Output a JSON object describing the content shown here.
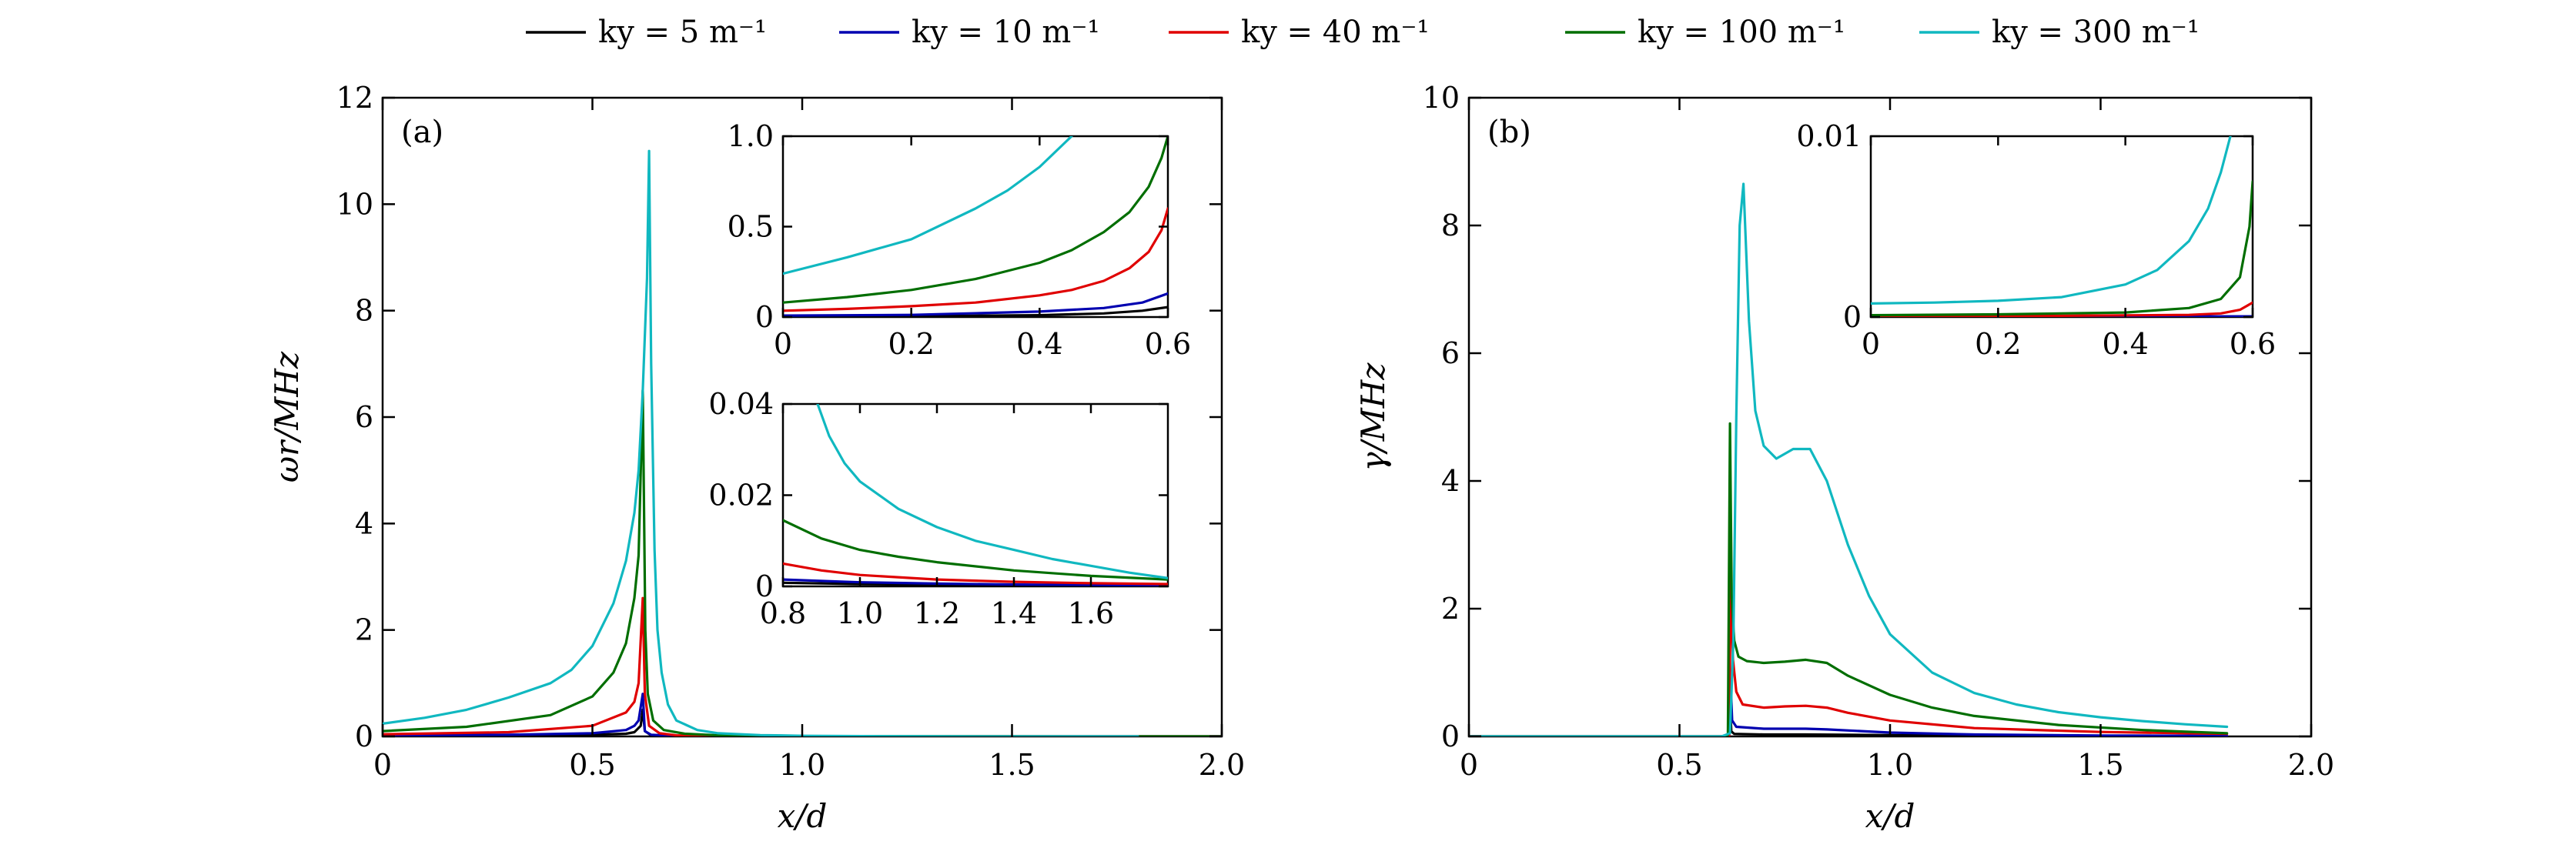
{
  "chart_data": [
    {
      "id": "a",
      "type": "line",
      "panel_label": "(a)",
      "xlabel": "x/d",
      "ylabel": "ωr/MHz",
      "xlim": [
        0,
        2.0
      ],
      "ylim": [
        0,
        12
      ],
      "xticks": [
        "0",
        "0.5",
        "1.0",
        "1.5",
        "2.0"
      ],
      "yticks": [
        "0",
        "2",
        "4",
        "6",
        "8",
        "10",
        "12"
      ],
      "legend": [
        "ky = 5 m⁻¹",
        "ky = 10 m⁻¹",
        "ky = 40 m⁻¹",
        "ky = 100 m⁻¹",
        "ky = 300 m⁻¹"
      ],
      "series": [
        {
          "name": "ky = 5 m⁻¹",
          "color": "#000000",
          "x": [
            0,
            0.3,
            0.5,
            0.58,
            0.6,
            0.615,
            0.62,
            0.625,
            0.64,
            0.7,
            1.0,
            1.5,
            2.0
          ],
          "y": [
            0.01,
            0.015,
            0.03,
            0.05,
            0.08,
            0.2,
            0.5,
            0.1,
            0.02,
            0.005,
            0.001,
            0.0,
            0.0
          ]
        },
        {
          "name": "ky = 10 m⁻¹",
          "color": "#0000b0",
          "x": [
            0,
            0.3,
            0.5,
            0.58,
            0.6,
            0.61,
            0.62,
            0.625,
            0.64,
            0.7,
            1.0,
            1.5,
            2.0
          ],
          "y": [
            0.02,
            0.03,
            0.06,
            0.12,
            0.2,
            0.3,
            0.8,
            0.1,
            0.03,
            0.008,
            0.001,
            0.0,
            0.0
          ]
        },
        {
          "name": "ky = 40 m⁻¹",
          "color": "#e00000",
          "x": [
            0,
            0.3,
            0.5,
            0.58,
            0.6,
            0.61,
            0.62,
            0.625,
            0.635,
            0.66,
            0.7,
            1.0,
            1.5,
            2.0
          ],
          "y": [
            0.04,
            0.08,
            0.2,
            0.45,
            0.65,
            1.0,
            2.6,
            0.8,
            0.2,
            0.06,
            0.02,
            0.005,
            0.001,
            0.0
          ]
        },
        {
          "name": "ky = 100 m⁻¹",
          "color": "#006e00",
          "x": [
            0,
            0.2,
            0.4,
            0.5,
            0.55,
            0.58,
            0.6,
            0.61,
            0.62,
            0.626,
            0.632,
            0.645,
            0.67,
            0.72,
            0.8,
            1.0,
            1.5,
            2.0
          ],
          "y": [
            0.1,
            0.18,
            0.4,
            0.75,
            1.2,
            1.75,
            2.6,
            3.4,
            6.5,
            2.0,
            0.8,
            0.3,
            0.12,
            0.05,
            0.02,
            0.006,
            0.001,
            0.0
          ]
        },
        {
          "name": "ky = 300 m⁻¹",
          "color": "#10b8c0",
          "x": [
            0,
            0.1,
            0.2,
            0.3,
            0.4,
            0.45,
            0.5,
            0.55,
            0.58,
            0.6,
            0.61,
            0.62,
            0.63,
            0.635,
            0.64,
            0.648,
            0.655,
            0.665,
            0.68,
            0.7,
            0.75,
            0.8,
            0.9,
            1.0,
            1.2,
            1.5,
            1.8
          ],
          "y": [
            0.24,
            0.35,
            0.5,
            0.73,
            1.0,
            1.25,
            1.7,
            2.5,
            3.3,
            4.2,
            5.0,
            6.5,
            8.6,
            11.0,
            7.0,
            3.5,
            2.0,
            1.2,
            0.6,
            0.3,
            0.12,
            0.06,
            0.025,
            0.012,
            0.005,
            0.0,
            0.0
          ]
        }
      ],
      "insets": [
        {
          "id": "a-inset-top",
          "xlim": [
            0,
            0.6
          ],
          "ylim": [
            0,
            1.0
          ],
          "xticks": [
            "0",
            "0.2",
            "0.4",
            "0.6"
          ],
          "yticks": [
            "0",
            "0.5",
            "1.0"
          ],
          "series": [
            {
              "name": "ky = 5 m⁻¹",
              "color": "#000000",
              "x": [
                0,
                0.2,
                0.4,
                0.5,
                0.56,
                0.6
              ],
              "y": [
                0.003,
                0.005,
                0.01,
                0.02,
                0.035,
                0.055
              ]
            },
            {
              "name": "ky = 10 m⁻¹",
              "color": "#0000b0",
              "x": [
                0,
                0.2,
                0.4,
                0.5,
                0.56,
                0.6
              ],
              "y": [
                0.008,
                0.012,
                0.03,
                0.05,
                0.08,
                0.13
              ]
            },
            {
              "name": "ky = 40 m⁻¹",
              "color": "#e00000",
              "x": [
                0,
                0.1,
                0.2,
                0.3,
                0.4,
                0.45,
                0.5,
                0.54,
                0.57,
                0.59,
                0.6
              ],
              "y": [
                0.035,
                0.045,
                0.06,
                0.08,
                0.12,
                0.15,
                0.2,
                0.27,
                0.36,
                0.48,
                0.6
              ]
            },
            {
              "name": "ky = 100 m⁻¹",
              "color": "#006e00",
              "x": [
                0,
                0.1,
                0.2,
                0.3,
                0.4,
                0.45,
                0.5,
                0.54,
                0.57,
                0.59,
                0.6
              ],
              "y": [
                0.08,
                0.11,
                0.15,
                0.21,
                0.3,
                0.37,
                0.47,
                0.58,
                0.72,
                0.88,
                1.0
              ]
            },
            {
              "name": "ky = 300 m⁻¹",
              "color": "#10b8c0",
              "x": [
                0,
                0.1,
                0.2,
                0.3,
                0.35,
                0.4,
                0.45
              ],
              "y": [
                0.24,
                0.33,
                0.43,
                0.6,
                0.7,
                0.83,
                1.0
              ]
            }
          ]
        },
        {
          "id": "a-inset-bottom",
          "xlim": [
            0.8,
            1.8
          ],
          "ylim": [
            0,
            0.04
          ],
          "xticks": [
            "0.8",
            "1.0",
            "1.2",
            "1.4",
            "1.6"
          ],
          "yticks": [
            "0",
            "0.02",
            "0.04"
          ],
          "series": [
            {
              "name": "ky = 5 m⁻¹",
              "color": "#000000",
              "x": [
                0.8,
                1.0,
                1.2,
                1.4,
                1.6,
                1.8
              ],
              "y": [
                0.0008,
                0.0005,
                0.0003,
                0.0002,
                0.0001,
                0.0001
              ]
            },
            {
              "name": "ky = 10 m⁻¹",
              "color": "#0000b0",
              "x": [
                0.8,
                1.0,
                1.2,
                1.4,
                1.6,
                1.8
              ],
              "y": [
                0.0015,
                0.0009,
                0.0006,
                0.0004,
                0.0003,
                0.0002
              ]
            },
            {
              "name": "ky = 40 m⁻¹",
              "color": "#e00000",
              "x": [
                0.8,
                0.9,
                1.0,
                1.2,
                1.4,
                1.6,
                1.8
              ],
              "y": [
                0.005,
                0.0035,
                0.0025,
                0.0015,
                0.001,
                0.0007,
                0.0005
              ]
            },
            {
              "name": "ky = 100 m⁻¹",
              "color": "#006e00",
              "x": [
                0.8,
                0.9,
                1.0,
                1.1,
                1.2,
                1.4,
                1.6,
                1.8
              ],
              "y": [
                0.0145,
                0.0105,
                0.008,
                0.0065,
                0.0053,
                0.0035,
                0.0023,
                0.0015
              ]
            },
            {
              "name": "ky = 300 m⁻¹",
              "color": "#10b8c0",
              "x": [
                0.89,
                0.92,
                0.96,
                1.0,
                1.1,
                1.2,
                1.3,
                1.4,
                1.5,
                1.6,
                1.7,
                1.8
              ],
              "y": [
                0.04,
                0.033,
                0.027,
                0.023,
                0.017,
                0.013,
                0.01,
                0.008,
                0.006,
                0.0045,
                0.003,
                0.0018
              ]
            }
          ]
        }
      ]
    },
    {
      "id": "b",
      "type": "line",
      "panel_label": "(b)",
      "xlabel": "x/d",
      "ylabel": "γ/MHz",
      "xlim": [
        0,
        2.0
      ],
      "ylim": [
        0,
        10
      ],
      "xticks": [
        "0",
        "0.5",
        "1.0",
        "1.5",
        "2.0"
      ],
      "yticks": [
        "0",
        "2",
        "4",
        "6",
        "8",
        "10"
      ],
      "series": [
        {
          "name": "ky = 5 m⁻¹",
          "color": "#000000",
          "x": [
            0,
            0.6,
            0.618,
            0.62,
            0.623,
            0.63,
            0.7,
            0.8,
            1.0,
            1.2,
            1.5,
            1.8
          ],
          "y": [
            0,
            0,
            0,
            0.5,
            0.08,
            0.04,
            0.03,
            0.03,
            0.02,
            0.01,
            0.005,
            0.003
          ]
        },
        {
          "name": "ky = 10 m⁻¹",
          "color": "#0000b0",
          "x": [
            0,
            0.6,
            0.618,
            0.621,
            0.625,
            0.635,
            0.7,
            0.8,
            0.85,
            1.0,
            1.2,
            1.5,
            1.8
          ],
          "y": [
            0,
            0,
            0,
            0.9,
            0.25,
            0.15,
            0.12,
            0.12,
            0.11,
            0.06,
            0.03,
            0.015,
            0.008
          ]
        },
        {
          "name": "ky = 40 m⁻¹",
          "color": "#e00000",
          "x": [
            0,
            0.6,
            0.618,
            0.622,
            0.627,
            0.635,
            0.65,
            0.7,
            0.75,
            0.8,
            0.85,
            0.9,
            1.0,
            1.2,
            1.5,
            1.8
          ],
          "y": [
            0,
            0,
            0,
            2.6,
            1.2,
            0.7,
            0.5,
            0.45,
            0.47,
            0.48,
            0.45,
            0.37,
            0.25,
            0.13,
            0.07,
            0.04
          ]
        },
        {
          "name": "ky = 100 m⁻¹",
          "color": "#006e00",
          "x": [
            0,
            0.6,
            0.615,
            0.62,
            0.624,
            0.63,
            0.64,
            0.66,
            0.7,
            0.75,
            0.8,
            0.85,
            0.9,
            1.0,
            1.1,
            1.2,
            1.4,
            1.6,
            1.8
          ],
          "y": [
            0,
            0,
            0.02,
            4.9,
            2.2,
            1.5,
            1.25,
            1.18,
            1.15,
            1.17,
            1.2,
            1.15,
            0.95,
            0.65,
            0.45,
            0.32,
            0.18,
            0.1,
            0.05
          ]
        },
        {
          "name": "ky = 300 m⁻¹",
          "color": "#10b8c0",
          "x": [
            0,
            0.6,
            0.62,
            0.628,
            0.635,
            0.643,
            0.652,
            0.665,
            0.68,
            0.7,
            0.73,
            0.77,
            0.81,
            0.85,
            0.9,
            0.95,
            1.0,
            1.1,
            1.2,
            1.3,
            1.4,
            1.5,
            1.6,
            1.7,
            1.8
          ],
          "y": [
            0,
            0,
            0.05,
            1.5,
            5.0,
            8.0,
            8.65,
            6.5,
            5.1,
            4.55,
            4.35,
            4.5,
            4.5,
            4.0,
            3.0,
            2.2,
            1.6,
            1.0,
            0.68,
            0.5,
            0.38,
            0.3,
            0.24,
            0.19,
            0.15
          ]
        }
      ],
      "insets": [
        {
          "id": "b-inset",
          "xlim": [
            0,
            0.6
          ],
          "ylim": [
            0,
            0.01
          ],
          "xticks": [
            "0",
            "0.2",
            "0.4",
            "0.6"
          ],
          "yticks": [
            "0",
            "0.01"
          ],
          "series": [
            {
              "name": "ky = 5 m⁻¹",
              "color": "#000000",
              "x": [
                0,
                0.6
              ],
              "y": [
                1e-05,
                2e-05
              ]
            },
            {
              "name": "ky = 10 m⁻¹",
              "color": "#0000b0",
              "x": [
                0,
                0.6
              ],
              "y": [
                2e-05,
                4e-05
              ]
            },
            {
              "name": "ky = 40 m⁻¹",
              "color": "#e00000",
              "x": [
                0,
                0.3,
                0.5,
                0.55,
                0.58,
                0.6
              ],
              "y": [
                5e-05,
                7e-05,
                0.00012,
                0.0002,
                0.0004,
                0.0008
              ]
            },
            {
              "name": "ky = 100 m⁻¹",
              "color": "#006e00",
              "x": [
                0,
                0.2,
                0.4,
                0.5,
                0.55,
                0.58,
                0.595,
                0.6
              ],
              "y": [
                0.0001,
                0.00015,
                0.00025,
                0.0005,
                0.001,
                0.0022,
                0.005,
                0.0075
              ]
            },
            {
              "name": "ky = 300 m⁻¹",
              "color": "#10b8c0",
              "x": [
                0,
                0.1,
                0.2,
                0.3,
                0.4,
                0.45,
                0.5,
                0.53,
                0.55,
                0.565
              ],
              "y": [
                0.00075,
                0.0008,
                0.0009,
                0.0011,
                0.0018,
                0.0026,
                0.0042,
                0.006,
                0.008,
                0.01
              ]
            }
          ]
        }
      ]
    }
  ]
}
